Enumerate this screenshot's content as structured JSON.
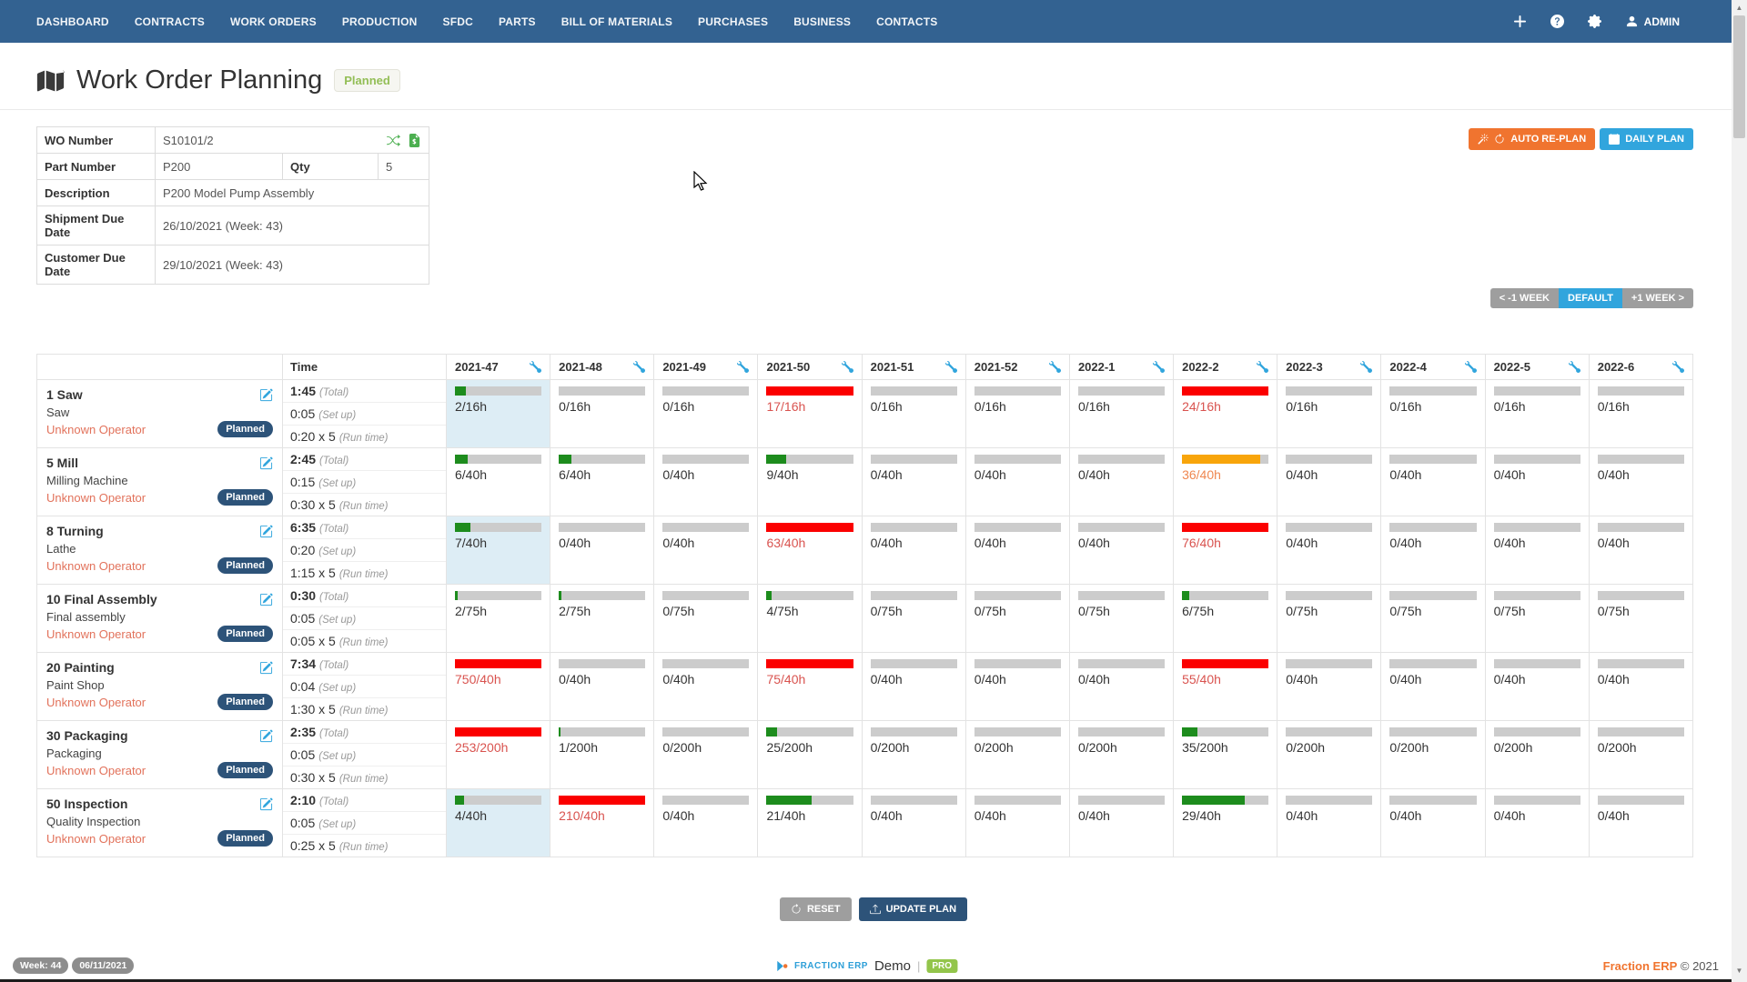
{
  "navbar": {
    "items": [
      "DASHBOARD",
      "CONTRACTS",
      "WORK ORDERS",
      "PRODUCTION",
      "SFDC",
      "PARTS",
      "BILL OF MATERIALS",
      "PURCHASES",
      "BUSINESS",
      "CONTACTS"
    ],
    "user": "ADMIN"
  },
  "header": {
    "title": "Work Order Planning",
    "status": "Planned"
  },
  "info": {
    "rows": [
      {
        "label": "WO Number",
        "value": "S10101/2",
        "icons": [
          "shuffle-icon",
          "document-icon"
        ]
      },
      {
        "label": "Part Number",
        "value": "P200",
        "label2": "Qty",
        "value2": "5"
      },
      {
        "label": "Description",
        "value": "P200 Model Pump Assembly"
      },
      {
        "label": "Shipment Due Date",
        "value": "26/10/2021 (Week: 43)"
      },
      {
        "label": "Customer Due Date",
        "value": "29/10/2021 (Week: 43)"
      }
    ]
  },
  "actions": {
    "auto_replan": "AUTO RE-PLAN",
    "daily_plan": "DAILY PLAN",
    "reset": "RESET",
    "update_plan": "UPDATE PLAN"
  },
  "week_nav": {
    "prev": "< -1 WEEK",
    "default": "DEFAULT",
    "next": "+1 WEEK >"
  },
  "planner": {
    "time_header": "Time",
    "weeks": [
      "2021-47",
      "2021-48",
      "2021-49",
      "2021-50",
      "2021-51",
      "2021-52",
      "2022-1",
      "2022-2",
      "2022-3",
      "2022-4",
      "2022-5",
      "2022-6"
    ],
    "labels": {
      "total": "(Total)",
      "setup": "(Set up)",
      "run": "(Run time)"
    },
    "rows": [
      {
        "op": "1 Saw",
        "machine": "Saw",
        "operator": "Unknown Operator",
        "status": "Planned",
        "total": "1:45",
        "setup": "0:05",
        "run": "0:20 x 5",
        "capacity": 16,
        "loads": [
          2,
          0,
          0,
          17,
          0,
          0,
          0,
          24,
          0,
          0,
          0,
          0
        ],
        "highlight_cols": [
          0
        ]
      },
      {
        "op": "5 Mill",
        "machine": "Milling Machine",
        "operator": "Unknown Operator",
        "status": "Planned",
        "total": "2:45",
        "setup": "0:15",
        "run": "0:30 x 5",
        "capacity": 40,
        "loads": [
          6,
          6,
          0,
          9,
          0,
          0,
          0,
          36,
          0,
          0,
          0,
          0
        ],
        "highlight_cols": []
      },
      {
        "op": "8 Turning",
        "machine": "Lathe",
        "operator": "Unknown Operator",
        "status": "Planned",
        "total": "6:35",
        "setup": "0:20",
        "run": "1:15 x 5",
        "capacity": 40,
        "loads": [
          7,
          0,
          0,
          63,
          0,
          0,
          0,
          76,
          0,
          0,
          0,
          0
        ],
        "highlight_cols": [
          0
        ]
      },
      {
        "op": "10 Final Assembly",
        "machine": "Final assembly",
        "operator": "Unknown Operator",
        "status": "Planned",
        "total": "0:30",
        "setup": "0:05",
        "run": "0:05 x 5",
        "capacity": 75,
        "loads": [
          2,
          2,
          0,
          4,
          0,
          0,
          0,
          6,
          0,
          0,
          0,
          0
        ],
        "highlight_cols": []
      },
      {
        "op": "20 Painting",
        "machine": "Paint Shop",
        "operator": "Unknown Operator",
        "status": "Planned",
        "total": "7:34",
        "setup": "0:04",
        "run": "1:30 x 5",
        "capacity": 40,
        "loads": [
          750,
          0,
          0,
          75,
          0,
          0,
          0,
          55,
          0,
          0,
          0,
          0
        ],
        "highlight_cols": []
      },
      {
        "op": "30 Packaging",
        "machine": "Packaging",
        "operator": "Unknown Operator",
        "status": "Planned",
        "total": "2:35",
        "setup": "0:05",
        "run": "0:30 x 5",
        "capacity": 200,
        "loads": [
          253,
          1,
          0,
          25,
          0,
          0,
          0,
          35,
          0,
          0,
          0,
          0
        ],
        "highlight_cols": []
      },
      {
        "op": "50 Inspection",
        "machine": "Quality Inspection",
        "operator": "Unknown Operator",
        "status": "Planned",
        "total": "2:10",
        "setup": "0:05",
        "run": "0:25 x 5",
        "capacity": 40,
        "loads": [
          4,
          210,
          0,
          21,
          0,
          0,
          0,
          29,
          0,
          0,
          0,
          0
        ],
        "highlight_cols": [
          0
        ]
      }
    ]
  },
  "footer": {
    "week_badge": "Week: 44",
    "date_badge": "06/11/2021",
    "brand": "FRACTION ERP",
    "product": "Demo",
    "pro": "PRO",
    "copyright_brand": "Fraction ERP",
    "copyright": "© 2021"
  },
  "colors": {
    "navbar": "#336291",
    "accent_blue": "#31a5dd",
    "accent_orange": "#f0742f",
    "navy": "#2d5379",
    "bar_green": "#1d8c1d",
    "bar_red": "#fb0000",
    "bar_orange": "#f8a50b",
    "over_text": "#d9534f",
    "warn_text": "#ef8750",
    "operator_text": "#e2725b",
    "highlight_cell": "#ddedf5",
    "badge_green": "#93c54b"
  }
}
